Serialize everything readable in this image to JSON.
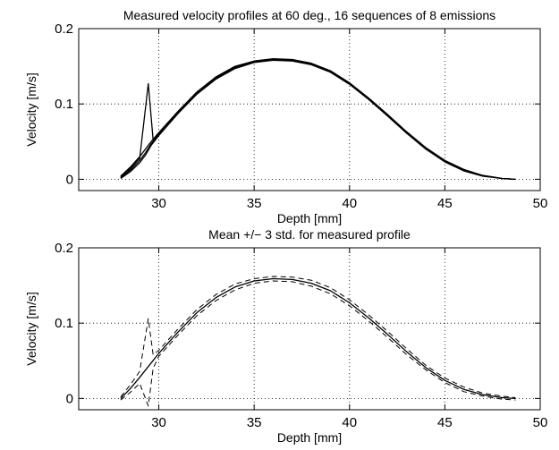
{
  "chart_data": [
    {
      "type": "line",
      "title": "Measured velocity profiles at 60 deg., 16 sequences of 8 emissions",
      "xlabel": "Depth [mm]",
      "ylabel": "Velocity [m/s]",
      "xlim": [
        25.8,
        50
      ],
      "ylim": [
        -0.015,
        0.2
      ],
      "xticks": [
        30,
        35,
        40,
        45,
        50
      ],
      "xtick_labels": [
        "30",
        "35",
        "40",
        "45",
        "50"
      ],
      "yticks": [
        0,
        0.1,
        0.2
      ],
      "ytick_labels": [
        "0",
        "0.1",
        "0.2"
      ],
      "grid": true,
      "series": [
        {
          "style": "solid",
          "x": [
            28.0,
            28.5,
            29.0,
            29.3,
            29.6,
            30.0,
            31.0,
            32.0,
            33.0,
            34.0,
            35.0,
            36.0,
            37.0,
            38.0,
            39.0,
            40.0,
            41.0,
            42.0,
            43.0,
            44.0,
            45.0,
            46.0,
            47.0,
            48.0,
            48.7
          ],
          "y": [
            0.002,
            0.012,
            0.025,
            0.035,
            0.047,
            0.06,
            0.088,
            0.114,
            0.134,
            0.148,
            0.156,
            0.159,
            0.158,
            0.153,
            0.143,
            0.127,
            0.107,
            0.085,
            0.062,
            0.041,
            0.024,
            0.012,
            0.005,
            0.001,
            0.0
          ]
        },
        {
          "style": "solid",
          "x": [
            28.0,
            28.5,
            29.0,
            29.3,
            29.6,
            30.0,
            31.0,
            32.0,
            33.0,
            34.0,
            35.0,
            36.0,
            37.0,
            38.0,
            39.0,
            40.0,
            41.0,
            42.0,
            43.0,
            44.0,
            45.0,
            46.0,
            47.0,
            48.0,
            48.7
          ],
          "y": [
            0.004,
            0.016,
            0.03,
            0.04,
            0.05,
            0.062,
            0.09,
            0.116,
            0.136,
            0.15,
            0.157,
            0.16,
            0.159,
            0.154,
            0.144,
            0.128,
            0.108,
            0.086,
            0.063,
            0.042,
            0.025,
            0.013,
            0.005,
            0.001,
            0.0
          ]
        },
        {
          "style": "solid",
          "x": [
            28.0,
            28.5,
            29.0,
            29.3,
            29.6,
            30.0,
            31.0,
            32.0,
            33.0,
            34.0,
            35.0,
            36.0,
            37.0,
            38.0,
            39.0,
            40.0,
            41.0,
            42.0,
            43.0,
            44.0,
            45.0,
            46.0,
            47.0,
            48.0,
            48.7
          ],
          "y": [
            0.001,
            0.01,
            0.022,
            0.032,
            0.045,
            0.058,
            0.087,
            0.113,
            0.133,
            0.147,
            0.155,
            0.158,
            0.157,
            0.152,
            0.142,
            0.126,
            0.106,
            0.084,
            0.061,
            0.04,
            0.023,
            0.011,
            0.004,
            0.001,
            0.0
          ]
        },
        {
          "style": "solid",
          "x": [
            28.0,
            28.5,
            29.0,
            29.45,
            29.7,
            30.0,
            31.0,
            32.0,
            33.0,
            34.0,
            35.0,
            36.0,
            37.0,
            38.0,
            39.0,
            40.0,
            41.0,
            42.0,
            43.0,
            44.0,
            45.0,
            46.0,
            47.0,
            48.0,
            48.7
          ],
          "y": [
            0.003,
            0.014,
            0.028,
            0.127,
            0.052,
            0.061,
            0.089,
            0.115,
            0.135,
            0.149,
            0.156,
            0.159,
            0.158,
            0.153,
            0.143,
            0.127,
            0.107,
            0.085,
            0.062,
            0.041,
            0.024,
            0.012,
            0.005,
            0.001,
            0.0
          ]
        }
      ]
    },
    {
      "type": "line",
      "title": "Mean +/− 3 std. for measured profile",
      "xlabel": "Depth [mm]",
      "ylabel": "Velocity [m/s]",
      "xlim": [
        25.8,
        50
      ],
      "ylim": [
        -0.015,
        0.2
      ],
      "xticks": [
        30,
        35,
        40,
        45,
        50
      ],
      "xtick_labels": [
        "30",
        "35",
        "40",
        "45",
        "50"
      ],
      "yticks": [
        0,
        0.1,
        0.2
      ],
      "ytick_labels": [
        "0",
        "0.1",
        "0.2"
      ],
      "grid": true,
      "series": [
        {
          "style": "solid",
          "x": [
            28.0,
            28.5,
            29.0,
            29.5,
            30.0,
            31.0,
            32.0,
            33.0,
            34.0,
            35.0,
            36.0,
            37.0,
            38.0,
            39.0,
            40.0,
            41.0,
            42.0,
            43.0,
            44.0,
            45.0,
            46.0,
            47.0,
            48.0,
            48.7
          ],
          "y": [
            0.0,
            0.013,
            0.028,
            0.044,
            0.06,
            0.088,
            0.114,
            0.134,
            0.148,
            0.156,
            0.159,
            0.158,
            0.153,
            0.143,
            0.127,
            0.107,
            0.085,
            0.062,
            0.041,
            0.024,
            0.012,
            0.005,
            0.001,
            0.0
          ]
        },
        {
          "style": "dashed",
          "x": [
            28.0,
            28.5,
            29.0,
            29.45,
            29.7,
            30.0,
            31.0,
            32.0,
            33.0,
            34.0,
            35.0,
            36.0,
            37.0,
            38.0,
            39.0,
            40.0,
            41.0,
            42.0,
            43.0,
            44.0,
            45.0,
            46.0,
            47.0,
            48.0,
            48.7
          ],
          "y": [
            0.002,
            0.018,
            0.036,
            0.106,
            0.058,
            0.064,
            0.092,
            0.118,
            0.138,
            0.152,
            0.159,
            0.162,
            0.161,
            0.157,
            0.147,
            0.131,
            0.111,
            0.089,
            0.066,
            0.044,
            0.027,
            0.015,
            0.007,
            0.003,
            0.001
          ]
        },
        {
          "style": "dashed",
          "x": [
            28.0,
            28.5,
            29.0,
            29.45,
            29.7,
            30.0,
            31.0,
            32.0,
            33.0,
            34.0,
            35.0,
            36.0,
            37.0,
            38.0,
            39.0,
            40.0,
            41.0,
            42.0,
            43.0,
            44.0,
            45.0,
            46.0,
            47.0,
            48.0,
            48.7
          ],
          "y": [
            -0.002,
            0.008,
            0.02,
            -0.01,
            0.04,
            0.056,
            0.084,
            0.11,
            0.13,
            0.144,
            0.153,
            0.156,
            0.155,
            0.149,
            0.139,
            0.123,
            0.103,
            0.081,
            0.058,
            0.038,
            0.021,
            0.009,
            0.003,
            -0.001,
            -0.002
          ]
        }
      ]
    }
  ]
}
